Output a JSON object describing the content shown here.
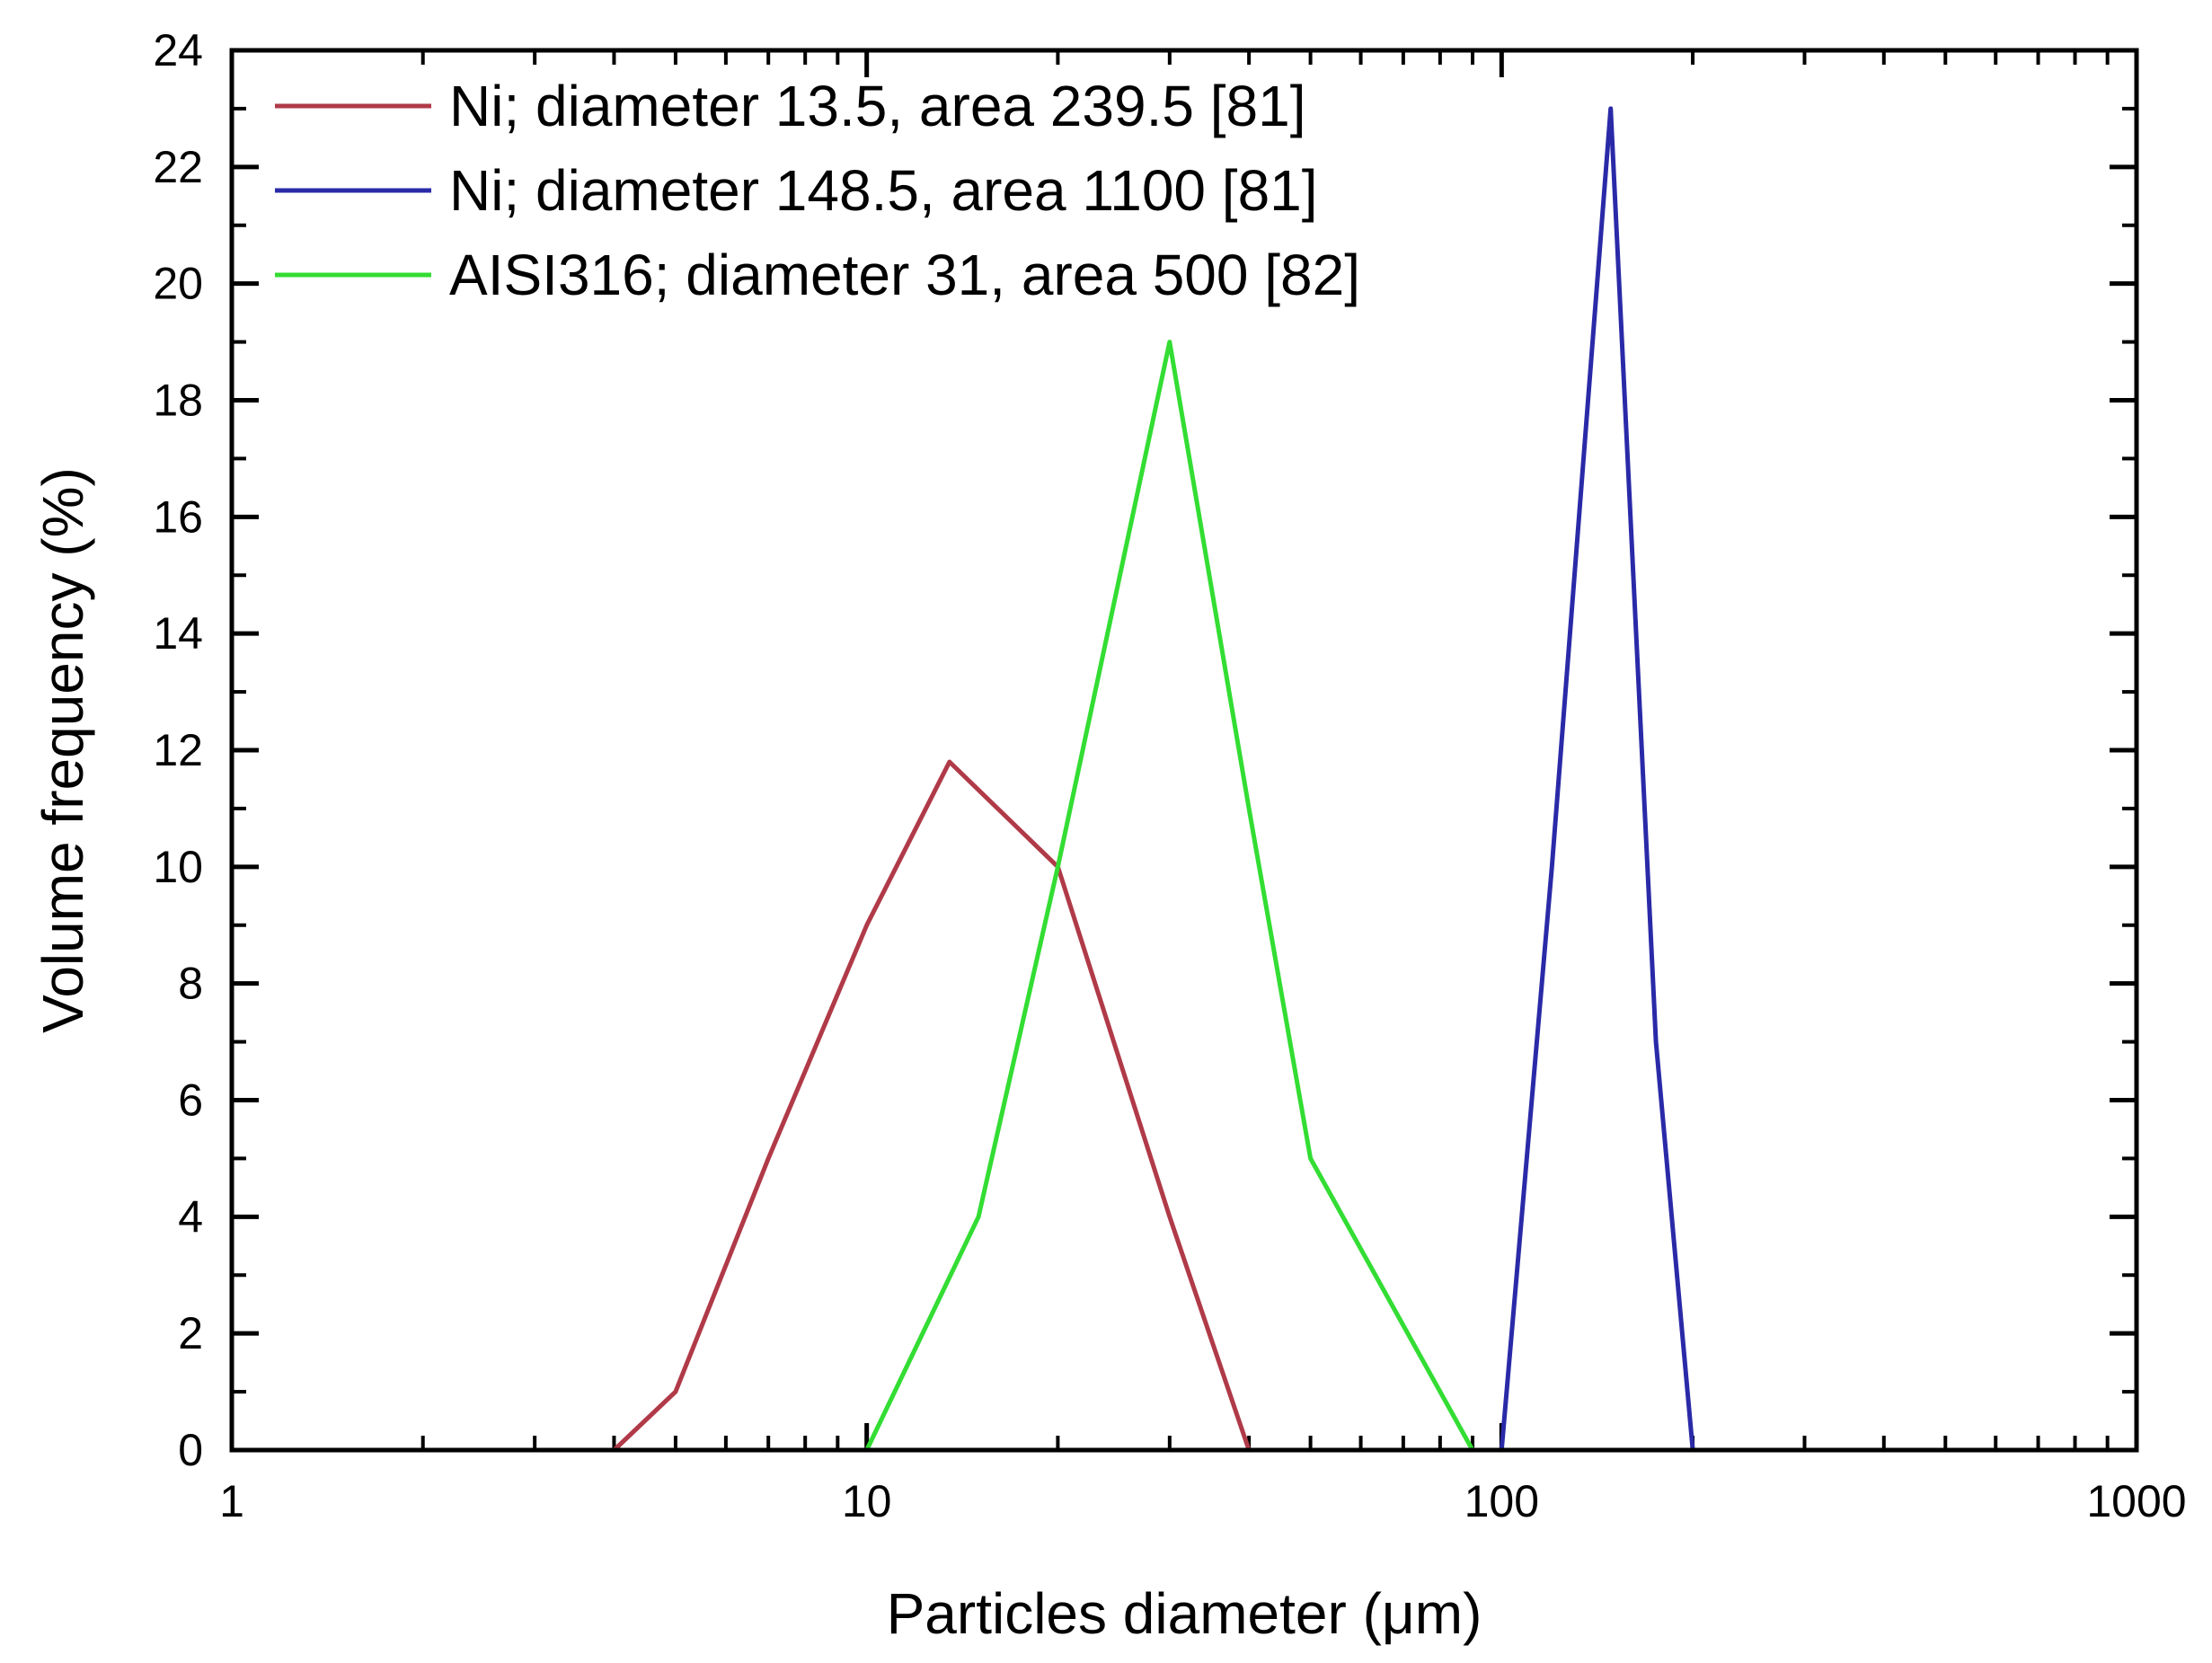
{
  "chart_data": {
    "type": "line",
    "xlabel": "Particles diameter (μm)",
    "ylabel": "Volume frequency (%)",
    "x_scale": "log",
    "xlim": [
      1,
      1000
    ],
    "ylim": [
      0,
      24
    ],
    "x_ticks": [
      1,
      10,
      100,
      1000
    ],
    "y_ticks": [
      0,
      2,
      4,
      6,
      8,
      10,
      12,
      14,
      16,
      18,
      20,
      22,
      24
    ],
    "grid": false,
    "legend_position": "top-left",
    "series": [
      {
        "name": "Ni; diameter 13.5, area 239.5 [81]",
        "color": "#b03a48",
        "points": [
          [
            4,
            0
          ],
          [
            5,
            1
          ],
          [
            7,
            5
          ],
          [
            10,
            9
          ],
          [
            13.5,
            11.8
          ],
          [
            20,
            10
          ],
          [
            30,
            4
          ],
          [
            40,
            0
          ]
        ]
      },
      {
        "name": "Ni; diameter 148.5, area 1100 [81]",
        "color": "#2a2aa8",
        "points": [
          [
            100,
            0
          ],
          [
            120,
            10
          ],
          [
            148.5,
            23
          ],
          [
            175,
            7
          ],
          [
            200,
            0
          ]
        ]
      },
      {
        "name": "AISI316; diameter 31, area 500 [82]",
        "color": "#33dd33",
        "points": [
          [
            10,
            0
          ],
          [
            15,
            4
          ],
          [
            20,
            10
          ],
          [
            30,
            19
          ],
          [
            40,
            11
          ],
          [
            50,
            5
          ],
          [
            90,
            0
          ]
        ]
      }
    ]
  }
}
